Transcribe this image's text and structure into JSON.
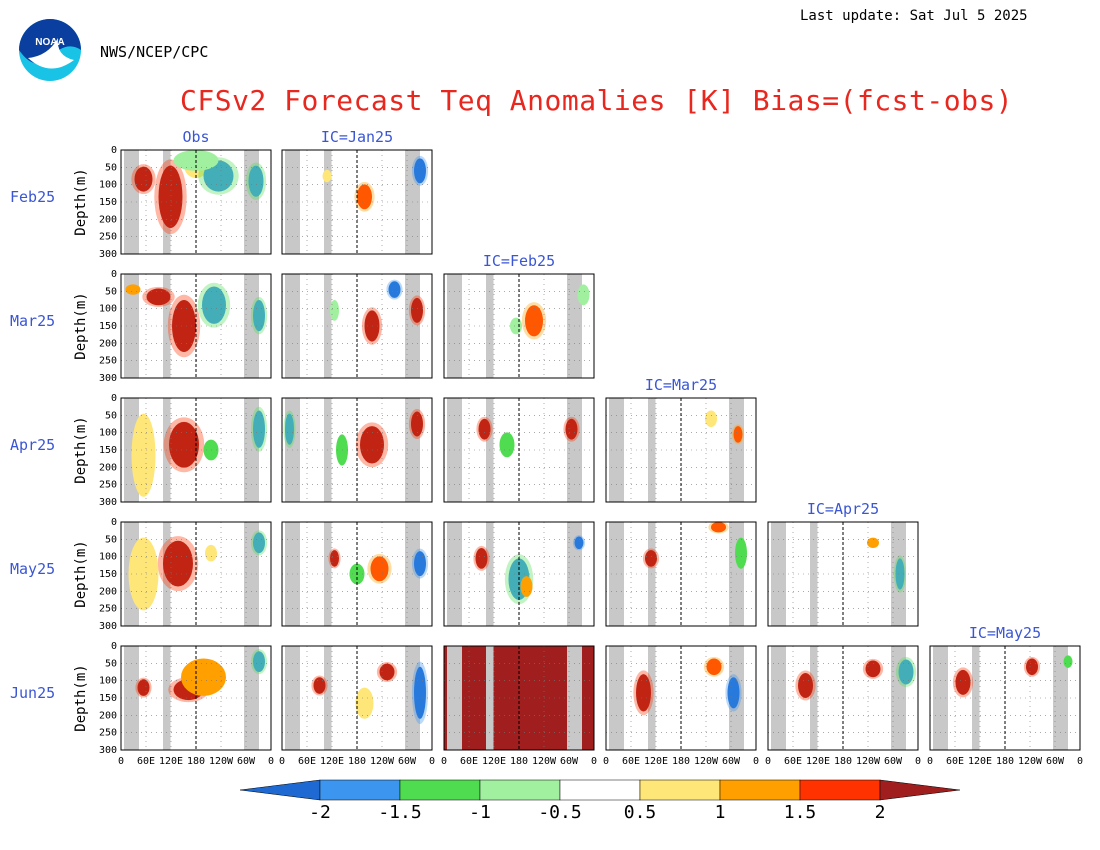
{
  "header": {
    "last_update": "Last update: Sat Jul 5 2025",
    "agency": "NWS/NCEP/CPC",
    "title": "CFSv2 Forecast Teq Anomalies [K] Bias=(fcst-obs)"
  },
  "logo": {
    "text": "NOAA",
    "colors": [
      "#0a3fa0",
      "#19c3e6"
    ]
  },
  "chart_data": {
    "type": "heatmap",
    "title": "CFSv2 Forecast Teq Anomalies [K] Bias=(fcst-obs)",
    "columns": [
      "Obs",
      "IC=Jan25",
      "IC=Feb25",
      "IC=Mar25",
      "IC=Apr25",
      "IC=May25"
    ],
    "rows": [
      "Feb25",
      "Mar25",
      "Apr25",
      "May25",
      "Jun25"
    ],
    "available_cols_per_row": [
      2,
      3,
      4,
      5,
      6
    ],
    "ylabel": "Depth(m)",
    "ylim": [
      300,
      0
    ],
    "yticks": [
      "0",
      "50",
      "100",
      "150",
      "200",
      "250",
      "300"
    ],
    "xticks": [
      "0",
      "60E",
      "120E",
      "180",
      "120W",
      "60W",
      "0"
    ],
    "colorbar": {
      "labels": [
        "-2",
        "-1.5",
        "-1",
        "-0.5",
        "0.5",
        "1",
        "1.5",
        "2"
      ],
      "colors": [
        "#1e6ad2",
        "#3c96f0",
        "#50dc50",
        "#a0f0a0",
        "#ffe678",
        "#ffa000",
        "#ff3200",
        "#a01e1e"
      ]
    },
    "land_mask_color": "#c8c8c8",
    "features": [
      {
        "row": 0,
        "col": 0,
        "blobs": [
          [
            0.15,
            0.28,
            0.06,
            0.12,
            7
          ],
          [
            0.33,
            0.45,
            0.08,
            0.3,
            7
          ],
          [
            0.5,
            0.15,
            0.08,
            0.12,
            4
          ],
          [
            0.65,
            0.25,
            0.1,
            0.15,
            1
          ],
          [
            0.5,
            0.1,
            0.15,
            0.1,
            3
          ],
          [
            0.9,
            0.3,
            0.05,
            0.15,
            1
          ]
        ]
      },
      {
        "row": 0,
        "col": 1,
        "blobs": [
          [
            0.55,
            0.45,
            0.05,
            0.12,
            6
          ],
          [
            0.92,
            0.2,
            0.04,
            0.12,
            0
          ],
          [
            0.3,
            0.25,
            0.03,
            0.06,
            4
          ]
        ]
      },
      {
        "row": 1,
        "col": 0,
        "blobs": [
          [
            0.25,
            0.22,
            0.08,
            0.08,
            7
          ],
          [
            0.42,
            0.5,
            0.08,
            0.25,
            7
          ],
          [
            0.62,
            0.3,
            0.08,
            0.18,
            1
          ],
          [
            0.92,
            0.4,
            0.04,
            0.15,
            1
          ],
          [
            0.08,
            0.15,
            0.05,
            0.05,
            5
          ]
        ]
      },
      {
        "row": 1,
        "col": 1,
        "blobs": [
          [
            0.6,
            0.5,
            0.05,
            0.15,
            7
          ],
          [
            0.9,
            0.35,
            0.04,
            0.12,
            7
          ],
          [
            0.75,
            0.15,
            0.04,
            0.08,
            0
          ],
          [
            0.35,
            0.35,
            0.03,
            0.1,
            3
          ]
        ]
      },
      {
        "row": 1,
        "col": 2,
        "blobs": [
          [
            0.6,
            0.45,
            0.06,
            0.15,
            6
          ],
          [
            0.48,
            0.5,
            0.04,
            0.08,
            3
          ],
          [
            0.93,
            0.2,
            0.04,
            0.1,
            3
          ]
        ]
      },
      {
        "row": 2,
        "col": 0,
        "blobs": [
          [
            0.42,
            0.45,
            0.1,
            0.22,
            7
          ],
          [
            0.6,
            0.5,
            0.05,
            0.1,
            2
          ],
          [
            0.92,
            0.3,
            0.04,
            0.18,
            1
          ],
          [
            0.15,
            0.55,
            0.08,
            0.4,
            4
          ]
        ]
      },
      {
        "row": 2,
        "col": 1,
        "blobs": [
          [
            0.6,
            0.45,
            0.08,
            0.18,
            7
          ],
          [
            0.9,
            0.25,
            0.04,
            0.12,
            7
          ],
          [
            0.4,
            0.5,
            0.04,
            0.15,
            2
          ],
          [
            0.05,
            0.3,
            0.03,
            0.15,
            1
          ]
        ]
      },
      {
        "row": 2,
        "col": 2,
        "blobs": [
          [
            0.27,
            0.3,
            0.04,
            0.1,
            7
          ],
          [
            0.85,
            0.3,
            0.04,
            0.1,
            7
          ],
          [
            0.42,
            0.45,
            0.05,
            0.12,
            2
          ]
        ]
      },
      {
        "row": 2,
        "col": 3,
        "blobs": [
          [
            0.88,
            0.35,
            0.03,
            0.08,
            6
          ],
          [
            0.7,
            0.2,
            0.04,
            0.08,
            4
          ]
        ]
      },
      {
        "row": 3,
        "col": 0,
        "blobs": [
          [
            0.38,
            0.4,
            0.1,
            0.22,
            7
          ],
          [
            0.6,
            0.3,
            0.04,
            0.08,
            4
          ],
          [
            0.92,
            0.2,
            0.04,
            0.1,
            1
          ],
          [
            0.15,
            0.5,
            0.1,
            0.35,
            4
          ]
        ]
      },
      {
        "row": 3,
        "col": 1,
        "blobs": [
          [
            0.65,
            0.45,
            0.06,
            0.12,
            6
          ],
          [
            0.35,
            0.35,
            0.03,
            0.08,
            7
          ],
          [
            0.5,
            0.5,
            0.05,
            0.1,
            2
          ],
          [
            0.92,
            0.4,
            0.04,
            0.12,
            0
          ]
        ]
      },
      {
        "row": 3,
        "col": 2,
        "blobs": [
          [
            0.5,
            0.55,
            0.07,
            0.2,
            1
          ],
          [
            0.55,
            0.62,
            0.04,
            0.1,
            5
          ],
          [
            0.25,
            0.35,
            0.04,
            0.1,
            7
          ],
          [
            0.9,
            0.2,
            0.03,
            0.06,
            0
          ]
        ]
      },
      {
        "row": 3,
        "col": 3,
        "blobs": [
          [
            0.3,
            0.35,
            0.04,
            0.08,
            7
          ],
          [
            0.9,
            0.3,
            0.04,
            0.15,
            2
          ],
          [
            0.75,
            0.05,
            0.05,
            0.05,
            6
          ]
        ]
      },
      {
        "row": 3,
        "col": 4,
        "blobs": [
          [
            0.7,
            0.2,
            0.04,
            0.05,
            5
          ],
          [
            0.88,
            0.5,
            0.03,
            0.15,
            1
          ]
        ]
      },
      {
        "row": 4,
        "col": 0,
        "blobs": [
          [
            0.45,
            0.42,
            0.1,
            0.1,
            7
          ],
          [
            0.55,
            0.3,
            0.15,
            0.18,
            5
          ],
          [
            0.15,
            0.4,
            0.04,
            0.08,
            7
          ],
          [
            0.92,
            0.15,
            0.04,
            0.1,
            1
          ]
        ]
      },
      {
        "row": 4,
        "col": 1,
        "blobs": [
          [
            0.25,
            0.38,
            0.04,
            0.08,
            7
          ],
          [
            0.7,
            0.25,
            0.05,
            0.08,
            7
          ],
          [
            0.92,
            0.45,
            0.04,
            0.25,
            0
          ],
          [
            0.55,
            0.55,
            0.06,
            0.15,
            4
          ]
        ]
      },
      {
        "row": 4,
        "col": 3,
        "blobs": [
          [
            0.25,
            0.45,
            0.05,
            0.18,
            7
          ],
          [
            0.72,
            0.2,
            0.05,
            0.08,
            6
          ],
          [
            0.85,
            0.45,
            0.04,
            0.15,
            0
          ]
        ]
      },
      {
        "row": 4,
        "col": 4,
        "blobs": [
          [
            0.25,
            0.38,
            0.05,
            0.12,
            7
          ],
          [
            0.7,
            0.22,
            0.05,
            0.08,
            7
          ],
          [
            0.92,
            0.25,
            0.05,
            0.12,
            1
          ]
        ]
      },
      {
        "row": 4,
        "col": 5,
        "blobs": [
          [
            0.22,
            0.35,
            0.05,
            0.12,
            7
          ],
          [
            0.68,
            0.2,
            0.04,
            0.08,
            7
          ],
          [
            0.92,
            0.15,
            0.03,
            0.06,
            2
          ]
        ]
      }
    ],
    "saturated_panel": {
      "row": 4,
      "col": 2,
      "color_index": 7
    }
  }
}
